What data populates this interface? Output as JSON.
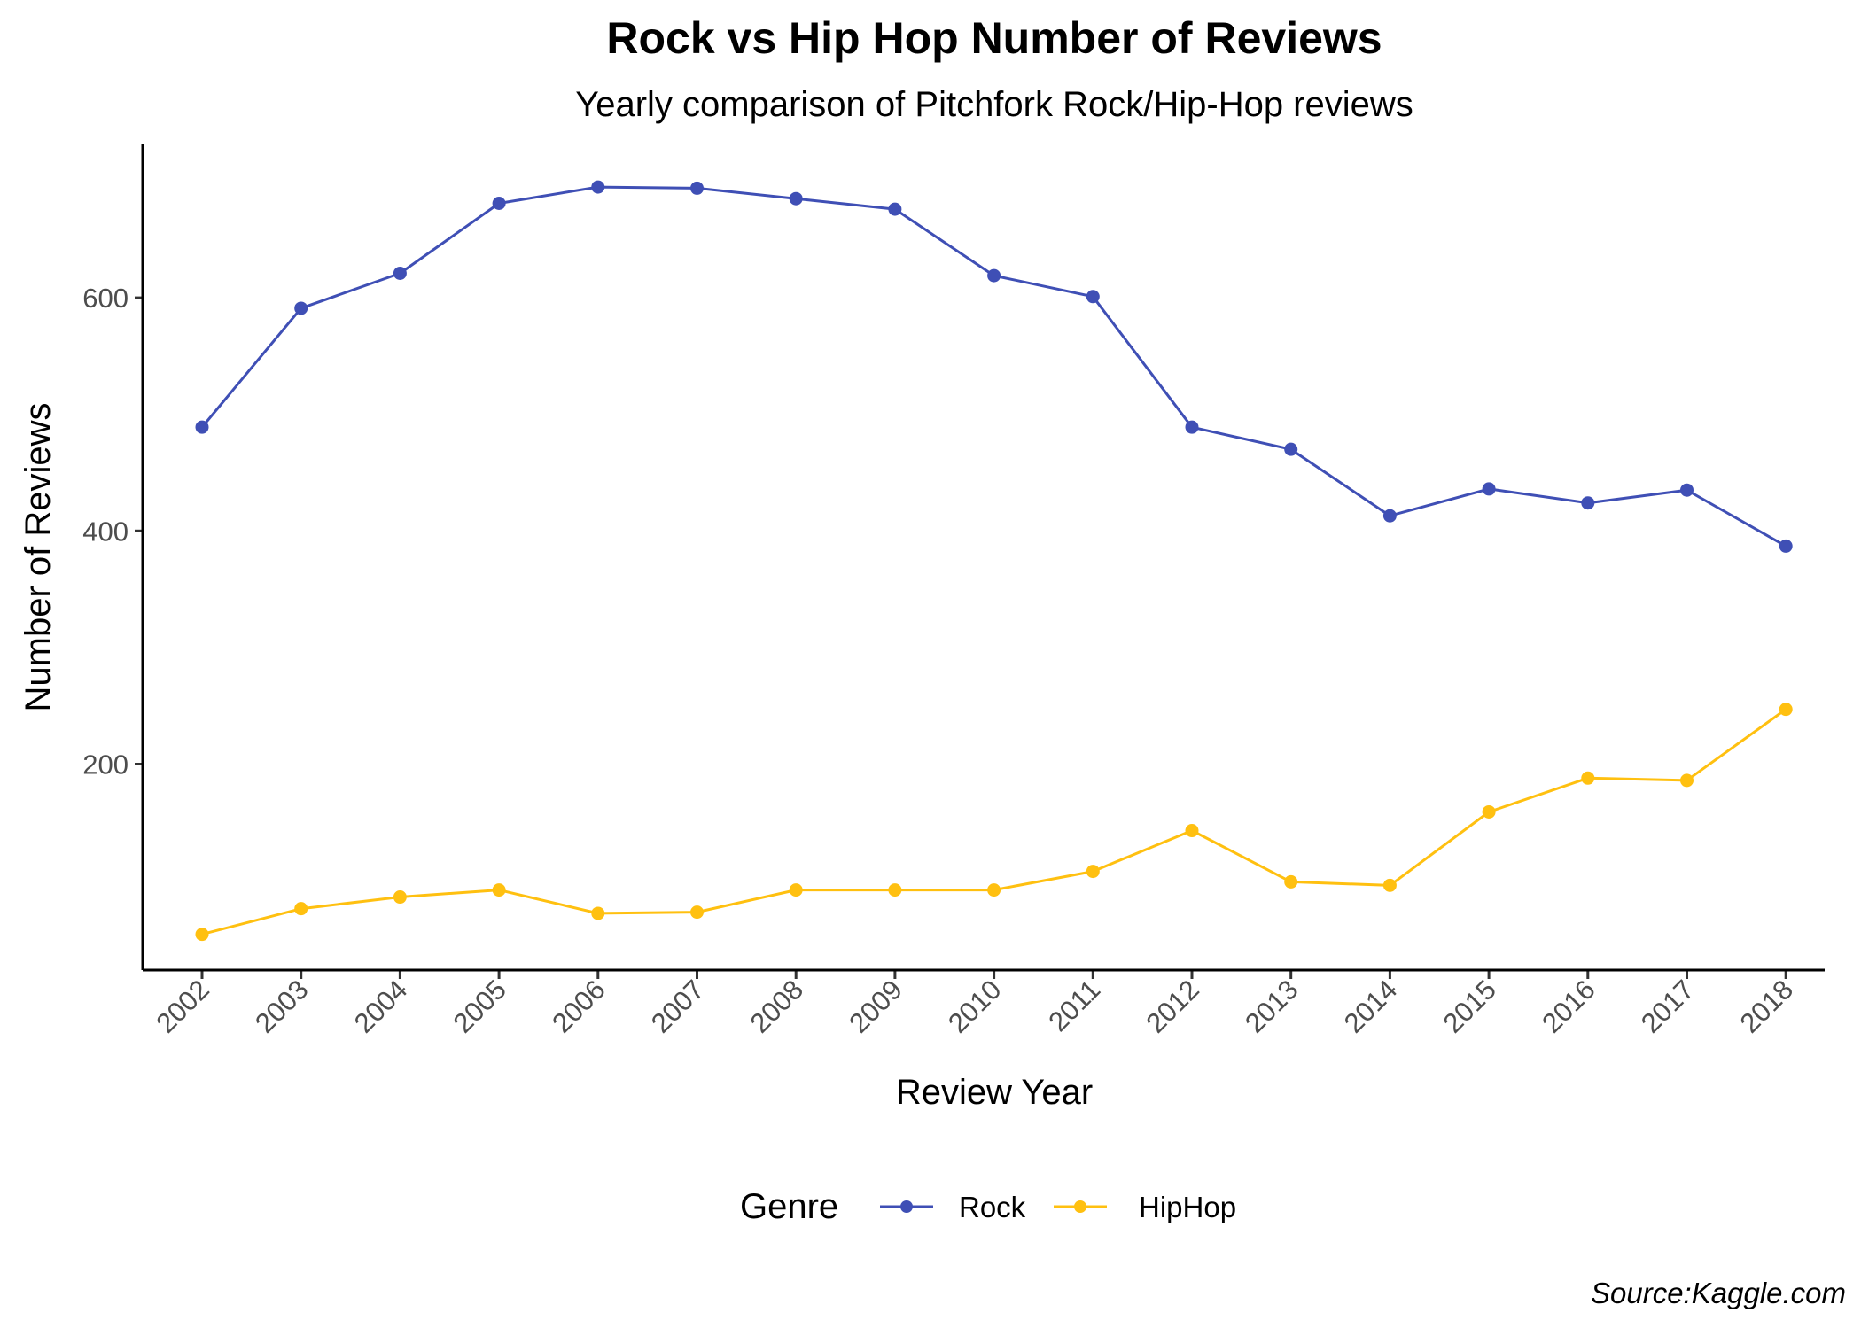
{
  "chart_data": {
    "type": "line",
    "title": "Rock vs Hip Hop Number of Reviews",
    "subtitle": "Yearly comparison of Pitchfork Rock/Hip-Hop reviews",
    "xlabel": "Review Year",
    "ylabel": "Number of Reviews",
    "caption": "Source:Kaggle.com",
    "x": [
      "2002",
      "2003",
      "2004",
      "2005",
      "2006",
      "2007",
      "2008",
      "2009",
      "2010",
      "2011",
      "2012",
      "2013",
      "2014",
      "2015",
      "2016",
      "2017",
      "2018"
    ],
    "ylim": [
      25,
      730
    ],
    "yticks": [
      200,
      400,
      600
    ],
    "grid": false,
    "legend": {
      "title": "Genre",
      "position": "bottom"
    },
    "series": [
      {
        "name": "Rock",
        "color": "#3f4fb5",
        "values": [
          489,
          591,
          621,
          681,
          695,
          694,
          685,
          676,
          619,
          601,
          489,
          470,
          413,
          436,
          424,
          435,
          387
        ]
      },
      {
        "name": "HipHop",
        "color": "#ffc010",
        "values": [
          54,
          76,
          86,
          92,
          72,
          73,
          92,
          92,
          92,
          108,
          143,
          99,
          96,
          159,
          188,
          186,
          247
        ]
      }
    ]
  }
}
